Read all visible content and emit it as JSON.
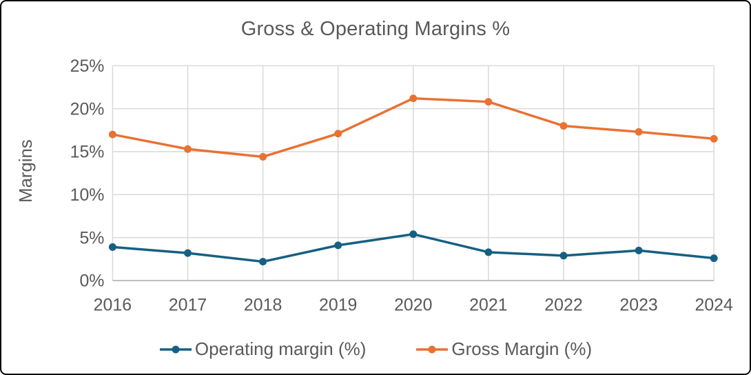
{
  "window": {
    "background_color": "#FFFFFF",
    "border_color": "#000000"
  },
  "chart_data": {
    "type": "line",
    "title": "Gross & Operating Margins %",
    "xlabel": "",
    "ylabel": "Margins",
    "categories": [
      "2016",
      "2017",
      "2018",
      "2019",
      "2020",
      "2021",
      "2022",
      "2023",
      "2024"
    ],
    "series": [
      {
        "name": "Operating margin (%)",
        "color": "#156082",
        "values": [
          3.9,
          3.2,
          2.2,
          4.1,
          5.4,
          3.3,
          2.9,
          3.5,
          2.6
        ]
      },
      {
        "name": "Gross Margin (%)",
        "color": "#E97132",
        "values": [
          17.0,
          15.3,
          14.4,
          17.1,
          21.2,
          20.8,
          18.0,
          17.3,
          16.5
        ]
      }
    ],
    "ylim": [
      0,
      25
    ],
    "ytick_values": [
      0,
      5,
      10,
      15,
      20,
      25
    ],
    "ytick_labels": [
      "0%",
      "5%",
      "10%",
      "15%",
      "20%",
      "25%"
    ],
    "grid": true,
    "legend_position": "bottom",
    "text_color": "#595959",
    "gridline_color": "#D9D9D9",
    "axis_color": "#BFBFBF"
  }
}
